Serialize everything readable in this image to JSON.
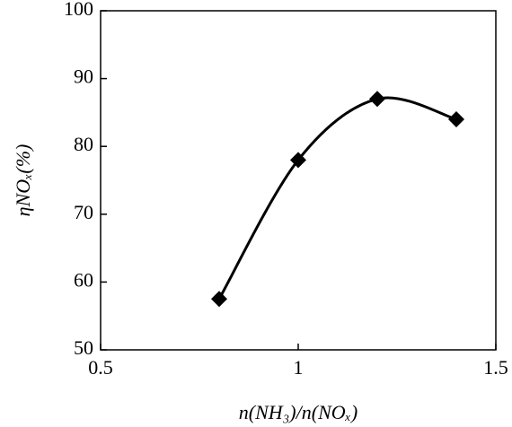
{
  "chart_data": {
    "type": "line",
    "x_label": "n(NH₃)/n(NOₓ)",
    "y_label": "ηNOₓ(%)",
    "x": [
      0.8,
      1.0,
      1.2,
      1.4
    ],
    "series": [
      {
        "color": "#000000",
        "values": [
          57.5,
          78,
          87,
          84
        ]
      }
    ],
    "xlim": [
      0.5,
      1.5
    ],
    "xticks": [
      0.5,
      1,
      1.5
    ],
    "ylim": [
      50,
      100
    ],
    "yticks": [
      50,
      60,
      70,
      80,
      90,
      100
    ]
  }
}
